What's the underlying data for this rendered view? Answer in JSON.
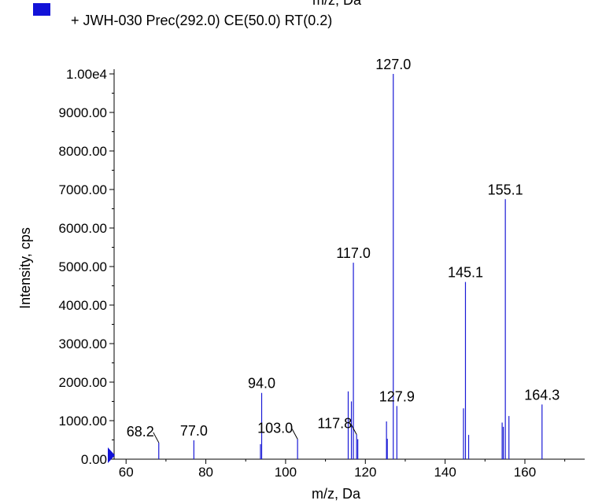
{
  "chart_data": {
    "type": "bar",
    "top_axis_label_fragment": "m/z, Da",
    "legend": {
      "color": "#1212d8",
      "text": "+ JWH-030 Prec(292.0) CE(50.0) RT(0.2)"
    },
    "xlabel": "m/z, Da",
    "ylabel": "Intensity, cps",
    "xlim": [
      57,
      175
    ],
    "ylim": [
      0,
      10000
    ],
    "x_ticks": [
      60,
      80,
      100,
      120,
      140,
      160
    ],
    "y_ticks": [
      {
        "value": 0,
        "label": "0.00"
      },
      {
        "value": 1000,
        "label": "1000.00"
      },
      {
        "value": 2000,
        "label": "2000.00"
      },
      {
        "value": 3000,
        "label": "3000.00"
      },
      {
        "value": 4000,
        "label": "4000.00"
      },
      {
        "value": 5000,
        "label": "5000.00"
      },
      {
        "value": 6000,
        "label": "6000.00"
      },
      {
        "value": 7000,
        "label": "7000.00"
      },
      {
        "value": 8000,
        "label": "8000.00"
      },
      {
        "value": 9000,
        "label": "9000.00"
      },
      {
        "value": 10000,
        "label": "1.00e4"
      }
    ],
    "bar_color": "#1a1ad6",
    "peaks": [
      {
        "x": 68.2,
        "y": 430
      },
      {
        "x": 77.0,
        "y": 490
      },
      {
        "x": 93.7,
        "y": 390
      },
      {
        "x": 94.0,
        "y": 1720
      },
      {
        "x": 103.0,
        "y": 520
      },
      {
        "x": 115.7,
        "y": 1760
      },
      {
        "x": 116.5,
        "y": 1500
      },
      {
        "x": 117.0,
        "y": 5100
      },
      {
        "x": 117.8,
        "y": 640
      },
      {
        "x": 118.1,
        "y": 520
      },
      {
        "x": 125.3,
        "y": 980
      },
      {
        "x": 125.5,
        "y": 530
      },
      {
        "x": 127.0,
        "y": 10000
      },
      {
        "x": 127.9,
        "y": 1380
      },
      {
        "x": 144.6,
        "y": 1320
      },
      {
        "x": 145.1,
        "y": 4600
      },
      {
        "x": 145.9,
        "y": 630
      },
      {
        "x": 154.3,
        "y": 950
      },
      {
        "x": 154.6,
        "y": 840
      },
      {
        "x": 155.1,
        "y": 6750
      },
      {
        "x": 156.0,
        "y": 1120
      },
      {
        "x": 164.3,
        "y": 1420
      }
    ],
    "annotations": [
      {
        "text": "68.2",
        "x": 68.2,
        "y": 430,
        "leader": true
      },
      {
        "text": "77.0",
        "x": 77.0,
        "y": 490,
        "leader": false
      },
      {
        "text": "94.0",
        "x": 94.0,
        "y": 1720,
        "leader": false
      },
      {
        "text": "103.0",
        "x": 103.0,
        "y": 520,
        "leader": true
      },
      {
        "text": "117.0",
        "x": 117.0,
        "y": 5100,
        "leader": false
      },
      {
        "text": "117.8",
        "x": 117.8,
        "y": 640,
        "leader": true
      },
      {
        "text": "127.0",
        "x": 127.0,
        "y": 10000,
        "leader": false
      },
      {
        "text": "127.9",
        "x": 127.9,
        "y": 1380,
        "leader": false
      },
      {
        "text": "145.1",
        "x": 145.1,
        "y": 4600,
        "leader": false
      },
      {
        "text": "155.1",
        "x": 155.1,
        "y": 6750,
        "leader": false
      },
      {
        "text": "164.3",
        "x": 164.3,
        "y": 1420,
        "leader": false
      }
    ]
  }
}
